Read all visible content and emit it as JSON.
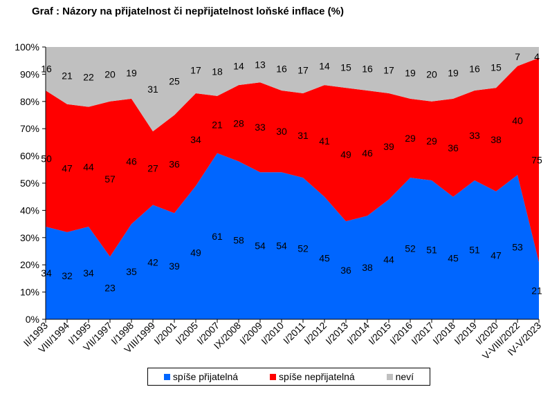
{
  "title": "Graf  : Názory na přijatelnost či nepřijatelnost loňské inflace (%)",
  "chart_data": {
    "type": "area",
    "stacked": true,
    "categories": [
      "II/1993",
      "VIII/1994",
      "I/1995",
      "VII/1997",
      "I/1998",
      "VIII/1999",
      "I/2001",
      "I/2005",
      "I/2007",
      "IX/2008",
      "I/2009",
      "I/2010",
      "I/2011",
      "I/2012",
      "I/2013",
      "I/2014",
      "I/2015",
      "I/2016",
      "I/2017",
      "I/2018",
      "I/2019",
      "I/2020",
      "V-VIII/2022",
      "IV-V/2023"
    ],
    "series": [
      {
        "name": "spíše přijatelná",
        "color": "#0066ff",
        "values": [
          34,
          32,
          34,
          23,
          35,
          42,
          39,
          49,
          61,
          58,
          54,
          54,
          52,
          45,
          36,
          38,
          44,
          52,
          51,
          45,
          51,
          47,
          53,
          21
        ]
      },
      {
        "name": "spíše nepřijatelná",
        "color": "#ff0000",
        "values": [
          50,
          47,
          44,
          57,
          46,
          27,
          36,
          34,
          21,
          28,
          33,
          30,
          31,
          41,
          49,
          46,
          39,
          29,
          29,
          36,
          33,
          38,
          40,
          75
        ]
      },
      {
        "name": "neví",
        "color": "#c0c0c0",
        "values": [
          16,
          21,
          22,
          20,
          19,
          31,
          25,
          17,
          18,
          14,
          13,
          16,
          17,
          14,
          15,
          16,
          17,
          19,
          20,
          19,
          16,
          15,
          7,
          4
        ]
      }
    ],
    "yticks": [
      "0%",
      "10%",
      "20%",
      "30%",
      "40%",
      "50%",
      "60%",
      "70%",
      "80%",
      "90%",
      "100%"
    ],
    "ylim": [
      0,
      100
    ],
    "legend_position": "bottom"
  }
}
